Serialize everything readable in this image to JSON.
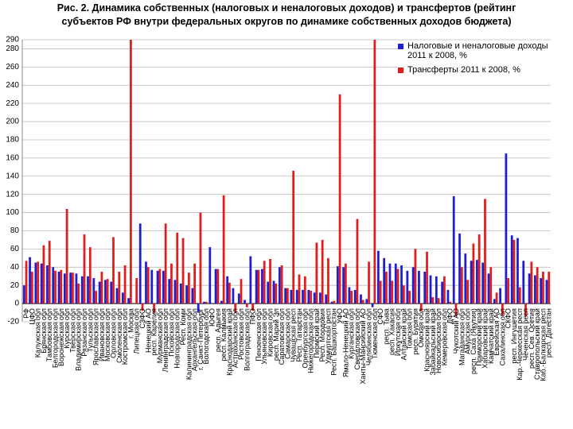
{
  "chart_data": {
    "type": "bar",
    "title": "Рис. 2. Динамика собственных (налоговых и неналоговых доходов) и трансфертов (рейтинг субъектов РФ внутри федеральных округов по динамике собственных доходов бюджета)",
    "categories": [
      "РФ",
      "ЦФО",
      "Калужская обл",
      "Брянская обл",
      "Тамбовская обл",
      "Белгородская обл",
      "Воронежская обл",
      "Курская обл",
      "Тверская обл",
      "Владимирская обл",
      "Рязанская обл",
      "Тульская обл",
      "Ярославская обл",
      "Ивановская обл",
      "Московская обл",
      "Орловская обл",
      "Смоленская обл",
      "Костромская обл",
      "г. Москва",
      "Липецкая обл",
      "СЗФО",
      "Ненецкий АО",
      "респ. Карелия",
      "Мурманская обл",
      "Ленинградская обл",
      "Псковская обл",
      "Новгородская обл",
      "Респ. Коми",
      "Калининградская обл",
      "Архангельская обл",
      "г. Санкт-Петербург",
      "Вологодская обл",
      "ЮФО",
      "респ. Адыгея",
      "респ. Калмыкия",
      "Краснодарский край",
      "Астраханская обл",
      "Ростовская обл",
      "Волгоградская обл",
      "ПФО",
      "Пензенская обл",
      "Ульяновская обл",
      "Кировская обл",
      "респ. Марий Эл",
      "Саратовская обл",
      "Самарская обл",
      "Чувашская респ",
      "Респ. Татарстан",
      "Оренбургская обл",
      "Нижегородская обл",
      "Пермский край",
      "Респ. Мордовия",
      "Удмуртская респ",
      "Респ. Башкортостан",
      "УФО",
      "Ямало-Ненецкий АО",
      "Курганская обл",
      "Свердловская обл",
      "Ханты-Мансийский АО",
      "Челябинская обл",
      "Тюменская обл",
      "СФО",
      "респ. Тыва",
      "респ. Хакасия",
      "Иркутская обл",
      "Алтайский край",
      "Томская обл",
      "респ. Бурятия",
      "Омская обл",
      "Красноярский край",
      "Забайкальский край",
      "Новосибирская обл",
      "Кемеровская обл",
      "ДФО",
      "Чукотский АО",
      "Магаданская обл",
      "Амурская обл",
      "респ. Саха (Якутия)",
      "Приморский край",
      "Хабаровский край",
      "Камчатский край",
      "Еврейская АО",
      "Сахалинская обл",
      "СКФО",
      "респ. Ингушетия",
      "Кар.-Черкесская респ",
      "Чеченская респ",
      "респ. Сев. Осетия",
      "Ставропольский край",
      "Каб.-Балкарская респ",
      "респ. Дагестан"
    ],
    "series": [
      {
        "name": "Налоговые и неналоговые доходы 2011 к 2008, %",
        "color": "#1f1fd0",
        "values": [
          20,
          51,
          45,
          44,
          42,
          40,
          35,
          33,
          34,
          33,
          30,
          30,
          28,
          24,
          26,
          24,
          17,
          12,
          6,
          0,
          88,
          46,
          37,
          36,
          36,
          27,
          26,
          22,
          20,
          17,
          -10,
          2,
          62,
          38,
          3,
          30,
          17,
          11,
          4,
          52,
          37,
          38,
          24,
          25,
          40,
          17,
          15,
          15,
          15,
          15,
          12,
          12,
          10,
          2,
          41,
          40,
          18,
          15,
          10,
          5,
          -4,
          58,
          50,
          44,
          44,
          42,
          36,
          40,
          36,
          35,
          31,
          30,
          24,
          15,
          118,
          77,
          55,
          47,
          48,
          45,
          33,
          5,
          17,
          165,
          75,
          72,
          47,
          33,
          31,
          28,
          26
        ]
      },
      {
        "name": "Трансферты 2011 к 2008, %",
        "color": "#e01e1e",
        "values": [
          47,
          35,
          46,
          64,
          69,
          36,
          37,
          104,
          34,
          22,
          76,
          62,
          14,
          35,
          27,
          73,
          35,
          42,
          290,
          28,
          -8,
          40,
          -10,
          38,
          88,
          44,
          78,
          72,
          34,
          44,
          100,
          2,
          0,
          38,
          119,
          23,
          -10,
          27,
          -4,
          -8,
          37,
          47,
          49,
          22,
          42,
          17,
          146,
          32,
          30,
          14,
          67,
          70,
          50,
          3,
          230,
          44,
          14,
          93,
          4,
          46,
          290,
          25,
          35,
          25,
          38,
          20,
          14,
          60,
          -8,
          57,
          7,
          6,
          30,
          2,
          -14,
          40,
          26,
          66,
          76,
          115,
          40,
          12,
          -13,
          28,
          70,
          18,
          -14,
          46,
          40,
          35,
          35
        ]
      }
    ],
    "ylim": [
      -20,
      290
    ],
    "yticks": [
      -20,
      0,
      20,
      40,
      60,
      80,
      100,
      120,
      140,
      160,
      180,
      200,
      220,
      240,
      260,
      280,
      290
    ],
    "grid": true,
    "legend": "upper right"
  }
}
